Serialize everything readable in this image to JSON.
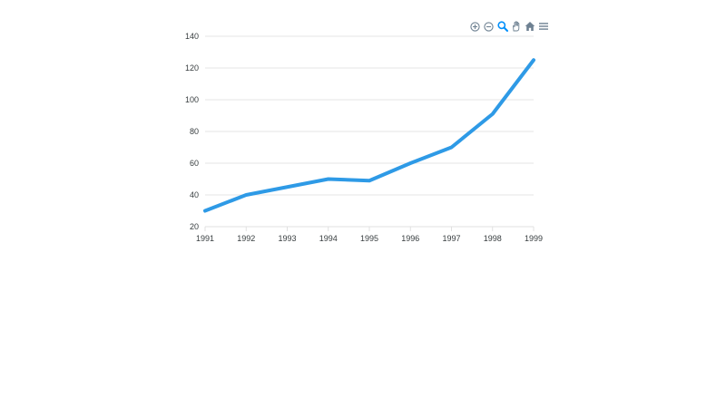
{
  "toolbar": {
    "icons": [
      "zoom-in-icon",
      "zoom-out-icon",
      "zoom-selection-icon",
      "pan-icon",
      "reset-home-icon",
      "menu-icon"
    ],
    "active_color": "#008ffb",
    "icon_color": "#6e8192"
  },
  "chart_data": {
    "type": "line",
    "title": "",
    "xlabel": "",
    "ylabel": "",
    "categories": [
      "1991",
      "1992",
      "1993",
      "1994",
      "1995",
      "1996",
      "1997",
      "1998",
      "1999"
    ],
    "series": [
      {
        "values": [
          30,
          40,
          45,
          50,
          49,
          60,
          70,
          91,
          125
        ],
        "color": "#2e9ae6"
      }
    ],
    "ylim": [
      20,
      140
    ],
    "yticks": [
      20,
      40,
      60,
      80,
      100,
      120,
      140
    ],
    "grid": true,
    "legend": "none"
  }
}
